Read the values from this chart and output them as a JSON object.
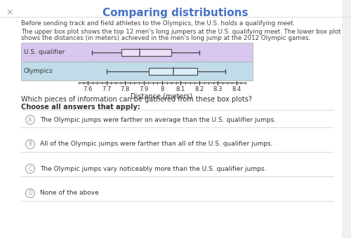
{
  "title": "Comparing distributions",
  "title_color": "#4472C4",
  "bg_color": "#ffffff",
  "para1": "Before sending track and field athletes to the Olympics, the U.S. holds a qualifying meet.",
  "para2_line1": "The upper box plot shows the top 12 men's long jumpers at the U.S. qualifying meet. The lower box plot",
  "para2_line2": "shows the distances (in meters) achieved in the men's long jump at the 2012 Olympic games.",
  "us_qualifier": {
    "whisker_low": 7.62,
    "q1": 7.78,
    "median": 7.88,
    "q3": 8.05,
    "whisker_high": 8.2,
    "label": "U.S. qualifier",
    "bg_color": "#d8c8f0"
  },
  "olympics": {
    "whisker_low": 7.7,
    "q1": 7.93,
    "median": 8.06,
    "q3": 8.19,
    "whisker_high": 8.34,
    "label": "Olympics",
    "bg_color": "#c0dce8"
  },
  "xmin": 7.55,
  "xmax": 8.45,
  "xticks": [
    7.6,
    7.7,
    7.8,
    7.9,
    8.0,
    8.1,
    8.2,
    8.3,
    8.4
  ],
  "xtick_labels": [
    "7.6",
    "7.7",
    "7.8",
    "7.9",
    "8",
    "8.1",
    "8.2",
    "8.3",
    "8.4"
  ],
  "xlabel": "Distance (meters)",
  "question": "Which pieces of information can be gathered from these box plots?",
  "instruction": "Choose all answers that apply:",
  "choices": [
    {
      "label": "A",
      "text": "The Olympic jumps were farther on average than the U.S. qualifier jumps."
    },
    {
      "label": "B",
      "text": "All of the Olympic jumps were farther than all of the U.S. qualifier jumps."
    },
    {
      "label": "C",
      "text": "The Olympic jumps vary noticeably more than the U.S. qualifier jumps."
    },
    {
      "label": "D",
      "text": "None of the above"
    }
  ]
}
